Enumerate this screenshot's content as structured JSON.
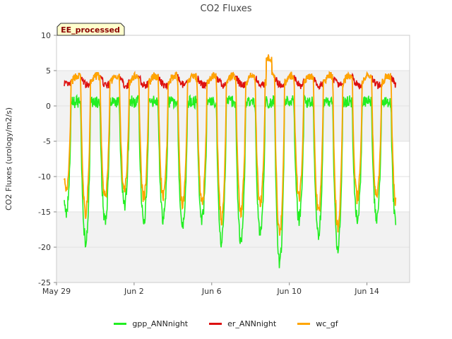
{
  "chart_data": {
    "type": "line",
    "title": "CO2 Fluxes",
    "xlabel": "",
    "ylabel": "CO2 Fluxes (urology/m2/s)",
    "badge": "EE_processed",
    "xlim": [
      0,
      18.2
    ],
    "ylim": [
      -25,
      10
    ],
    "yticks": [
      10,
      5,
      0,
      -5,
      -10,
      -15,
      -20,
      -25
    ],
    "xticks": [
      {
        "day": 0,
        "label": "May 29"
      },
      {
        "day": 4,
        "label": "Jun 2"
      },
      {
        "day": 8,
        "label": "Jun 6"
      },
      {
        "day": 12,
        "label": "Jun 10"
      },
      {
        "day": 16,
        "label": "Jun 14"
      }
    ],
    "bands": [
      [
        -5,
        5
      ],
      [
        -15,
        -25
      ]
    ],
    "x_start": 0.4,
    "x_end": 17.5,
    "daily_min_gpp": [
      -15,
      -19,
      -16,
      -14,
      -16,
      -16,
      -17,
      -16,
      -19,
      -19,
      -18,
      -22,
      -16,
      -18,
      -20,
      -16,
      -16,
      -17
    ],
    "daily_min_wc": [
      -12,
      -15,
      -13,
      -12,
      -13,
      -13,
      -14,
      -14,
      -16,
      -15,
      -14,
      -18,
      -13,
      -15,
      -17,
      -13,
      -13,
      -14
    ],
    "series": [
      {
        "name": "gpp_ANNnight",
        "color": "#22ee22"
      },
      {
        "name": "er_ANNnight",
        "color": "#dd1111"
      },
      {
        "name": "wc_gf",
        "color": "#ffa500"
      }
    ]
  }
}
